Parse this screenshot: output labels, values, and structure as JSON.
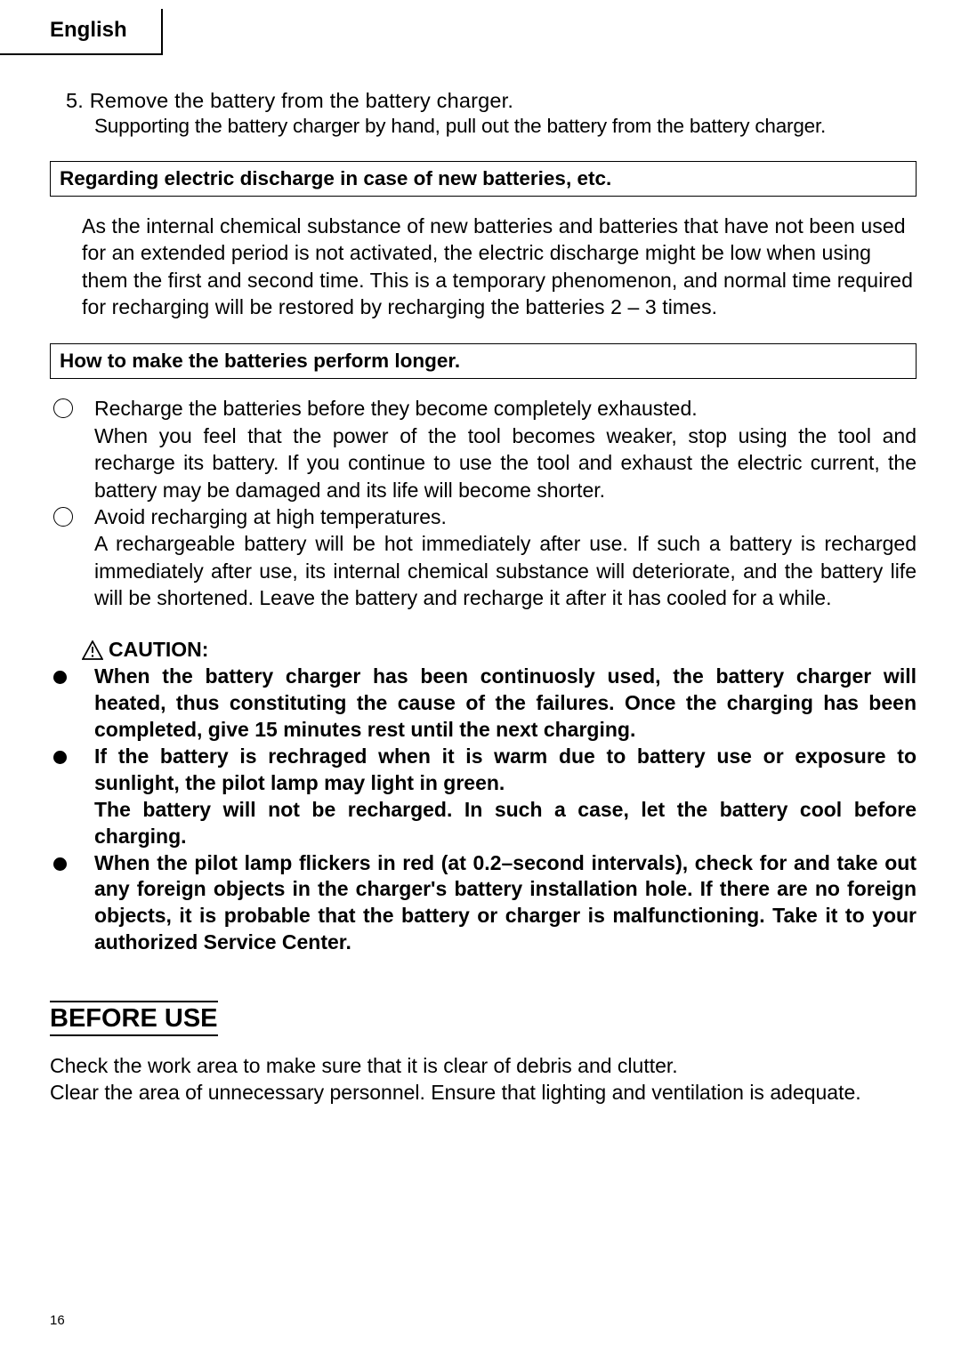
{
  "colors": {
    "text": "#000000",
    "bg": "#ffffff",
    "border": "#000000"
  },
  "typography": {
    "body_pt": 23,
    "heading_pt": 29,
    "lang_pt": 24,
    "page_num_pt": 15,
    "font_family": "Arial"
  },
  "page_number": "16",
  "lang_label": "English",
  "step5": {
    "title": "5. Remove the battery from the battery charger.",
    "body": "Supporting the battery charger by hand, pull out the battery from the battery charger."
  },
  "box_discharge": "Regarding electric discharge in case of new batteries, etc.",
  "para_discharge": "As the internal chemical substance of new batteries and batteries that have not been used for an extended period is not activated, the electric discharge might be low when using them the first and second time. This is a temporary phenomenon, and normal time required for recharging will be restored by recharging the batteries 2 – 3 times.",
  "box_longer": "How to make the batteries perform longer.",
  "circle_items": [
    "Recharge the batteries before they become completely exhausted.\nWhen you feel that the power of the tool becomes weaker, stop using the tool and recharge its battery. If you continue to use the tool and exhaust the electric current, the battery may be damaged and its life will become shorter.",
    "Avoid recharging at high temperatures.\nA rechargeable battery will be hot immediately after use. If such a battery is recharged immediately after use, its internal chemical substance will deteriorate, and the battery life will be shortened. Leave the battery and recharge it after it has cooled for a while."
  ],
  "caution_label": "CAUTION:",
  "bullet_items": [
    "When the battery charger has been continuosly used, the battery charger will heated, thus constituting the cause of the failures. Once the charging has been completed, give 15 minutes rest until the next charging.",
    "If the battery is rechraged when it is warm due to battery use or exposure to sunlight, the pilot lamp may light in green.\nThe battery will not be recharged. In such a case, let the battery cool before charging.",
    "When the pilot lamp flickers in red (at 0.2–second intervals), check for and take out any foreign objects in the charger's battery installation hole. If there are no foreign objects, it is probable that the battery or charger is malfunctioning. Take it to your authorized Service Center."
  ],
  "before_use_heading": "BEFORE USE",
  "before_use_body": "Check the work area to make sure that it is clear of debris and clutter.\nClear the area of unnecessary personnel. Ensure that lighting and ventilation is adequate."
}
